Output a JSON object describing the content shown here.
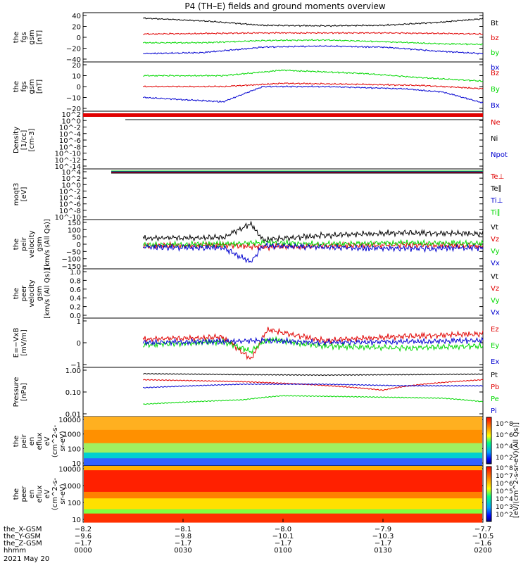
{
  "title": "P4 (TH–E) fields and ground moments overview",
  "colors": {
    "black": "#000000",
    "red": "#e00000",
    "green": "#00d800",
    "blue": "#0000d0"
  },
  "chart_data": [
    {
      "type": "line",
      "ylabel": [
        "the",
        "fgs",
        "gsm",
        "[nT]"
      ],
      "yticks": [
        "40",
        "20",
        "0",
        "−20",
        "−40"
      ],
      "ylim": [
        -40,
        40
      ],
      "series": [
        {
          "name": "Bt",
          "color": "black",
          "x": [
            0.15,
            0.3,
            0.45,
            0.6,
            0.75,
            0.9,
            1.0
          ],
          "values": [
            35,
            30,
            22,
            21,
            22,
            28,
            34
          ]
        },
        {
          "name": "bz",
          "color": "red",
          "x": [
            0.15,
            0.3,
            0.45,
            0.6,
            0.75,
            0.9,
            1.0
          ],
          "values": [
            6,
            7,
            8,
            8,
            8,
            7,
            6
          ]
        },
        {
          "name": "by",
          "color": "green",
          "x": [
            0.15,
            0.3,
            0.45,
            0.6,
            0.75,
            0.9,
            1.0
          ],
          "values": [
            -10,
            -10,
            -6,
            -5,
            -8,
            -12,
            -13
          ]
        },
        {
          "name": "bx",
          "color": "blue",
          "x": [
            0.15,
            0.3,
            0.45,
            0.6,
            0.75,
            0.9,
            1.0
          ],
          "values": [
            -30,
            -28,
            -18,
            -16,
            -18,
            -26,
            -30
          ]
        }
      ]
    },
    {
      "type": "line",
      "ylabel": [
        "the",
        "fgs",
        "gsm",
        "[nT]"
      ],
      "yticks": [
        "20",
        "10",
        "0",
        "−10",
        "−20"
      ],
      "ylim": [
        -20,
        20
      ],
      "series": [
        {
          "name": "Bz",
          "color": "red",
          "x": [
            0.15,
            0.35,
            0.5,
            0.7,
            0.85,
            1.0
          ],
          "values": [
            0,
            0,
            3,
            2,
            1,
            -2
          ]
        },
        {
          "name": "By",
          "color": "green",
          "x": [
            0.15,
            0.35,
            0.5,
            0.7,
            0.85,
            1.0
          ],
          "values": [
            10,
            10,
            15,
            12,
            8,
            5
          ]
        },
        {
          "name": "Bx",
          "color": "blue",
          "x": [
            0.15,
            0.35,
            0.45,
            0.6,
            0.8,
            0.9,
            1.0
          ],
          "values": [
            -10,
            -14,
            0,
            0,
            -2,
            -5,
            -15
          ]
        }
      ]
    },
    {
      "type": "line",
      "ylabel": [
        "Density",
        "[1/cc]",
        "[cm-3]"
      ],
      "yticks": [
        "10^2",
        "10^0",
        "10^-2",
        "10^-4",
        "10^-6",
        "10^-8",
        "10^-10",
        "10^-12",
        "10^-14"
      ],
      "series": [
        {
          "name": "Ne",
          "color": "red"
        },
        {
          "name": "Ni",
          "color": "black"
        },
        {
          "name": "Npot",
          "color": "blue"
        }
      ]
    },
    {
      "type": "line",
      "ylabel": [
        "moqt3",
        "[eV]"
      ],
      "yticks": [
        "10^4",
        "10^2",
        "10^0",
        "10^-2",
        "10^-4",
        "10^-6",
        "10^-8",
        "10^-10"
      ],
      "series": [
        {
          "name": "Te⊥",
          "color": "red"
        },
        {
          "name": "Te∥",
          "color": "black"
        },
        {
          "name": "Ti⊥",
          "color": "blue"
        },
        {
          "name": "Ti∥",
          "color": "green"
        }
      ]
    },
    {
      "type": "line",
      "ylabel": [
        "the",
        "peir",
        "velocity",
        "gsm",
        "[km/s (All Qs)]"
      ],
      "yticks": [
        "150",
        "100",
        "50",
        "0",
        "−50",
        "−100",
        "−150"
      ],
      "ylim": [
        -150,
        150
      ],
      "series": [
        {
          "name": "Vt",
          "color": "black",
          "x": [
            0.15,
            0.35,
            0.42,
            0.45,
            0.6,
            0.8,
            1.0
          ],
          "values": [
            40,
            45,
            140,
            30,
            60,
            80,
            70
          ]
        },
        {
          "name": "Vz",
          "color": "red",
          "x": [
            0.15,
            0.35,
            0.45,
            0.6,
            0.8,
            1.0
          ],
          "values": [
            -10,
            -5,
            -20,
            -10,
            -5,
            -10
          ]
        },
        {
          "name": "Vy",
          "color": "green",
          "x": [
            0.15,
            0.35,
            0.45,
            0.6,
            0.8,
            1.0
          ],
          "values": [
            -5,
            0,
            10,
            0,
            10,
            5
          ]
        },
        {
          "name": "Vx",
          "color": "blue",
          "x": [
            0.15,
            0.35,
            0.42,
            0.45,
            0.6,
            0.8,
            1.0
          ],
          "values": [
            -20,
            -25,
            -120,
            -10,
            -20,
            -30,
            -25
          ]
        }
      ]
    },
    {
      "type": "line",
      "ylabel": [
        "the",
        "peer",
        "velocity",
        "gsm",
        "[km/s (All Qs)]"
      ],
      "yticks": [
        "1.0",
        "0.8",
        "0.6",
        "0.4",
        "0.2",
        "0.0"
      ],
      "ylim": [
        0,
        1
      ],
      "series": [
        {
          "name": "Vt",
          "color": "black"
        },
        {
          "name": "Vz",
          "color": "red"
        },
        {
          "name": "Vy",
          "color": "green"
        },
        {
          "name": "Vx",
          "color": "blue"
        }
      ]
    },
    {
      "type": "line",
      "ylabel": [
        "E=−VxB",
        "[mV/m]"
      ],
      "yticks": [
        "1",
        "0",
        "−1"
      ],
      "ylim": [
        -2,
        2
      ],
      "series": [
        {
          "name": "Ez",
          "color": "red",
          "x": [
            0.15,
            0.35,
            0.42,
            0.46,
            0.6,
            0.8,
            1.0
          ],
          "values": [
            0.3,
            0.5,
            -1.5,
            1.2,
            0.2,
            0.6,
            0.8
          ]
        },
        {
          "name": "Ey",
          "color": "green",
          "x": [
            0.15,
            0.35,
            0.42,
            0.46,
            0.6,
            0.8,
            1.0
          ],
          "values": [
            -0.2,
            0.1,
            -0.8,
            0.3,
            -0.3,
            -0.5,
            -0.3
          ]
        },
        {
          "name": "Ex",
          "color": "blue",
          "x": [
            0.15,
            0.35,
            0.45,
            0.6,
            0.8,
            1.0
          ],
          "values": [
            0,
            0.1,
            0.2,
            0,
            0.1,
            0.2
          ]
        }
      ]
    },
    {
      "type": "line",
      "ylabel": [
        "Pressure",
        "[nPa]"
      ],
      "yticks": [
        "1.00",
        "0.10",
        "0.01"
      ],
      "ylim": [
        0.01,
        1.5
      ],
      "log": true,
      "series": [
        {
          "name": "Pt",
          "color": "black",
          "x": [
            0.15,
            0.4,
            0.6,
            0.8,
            1.0
          ],
          "values": [
            1.0,
            0.9,
            0.85,
            0.9,
            0.95
          ]
        },
        {
          "name": "Pb",
          "color": "red",
          "x": [
            0.15,
            0.4,
            0.55,
            0.75,
            0.85,
            1.0
          ],
          "values": [
            0.5,
            0.4,
            0.3,
            0.15,
            0.3,
            0.5
          ]
        },
        {
          "name": "Pe",
          "color": "green",
          "x": [
            0.15,
            0.4,
            0.5,
            0.7,
            0.9,
            1.0
          ],
          "values": [
            0.03,
            0.05,
            0.08,
            0.07,
            0.06,
            0.04
          ]
        },
        {
          "name": "Pi",
          "color": "blue",
          "x": [
            0.15,
            0.4,
            0.6,
            0.8,
            1.0
          ],
          "values": [
            0.2,
            0.3,
            0.3,
            0.25,
            0.25
          ]
        }
      ]
    },
    {
      "type": "heatmap",
      "ylabel": [
        "the",
        "peir",
        "en",
        "eflux",
        "eV",
        "(cm^2-s-",
        "sr-eV)"
      ],
      "yticks": [
        "10000",
        "1000",
        "100",
        "10"
      ]
    },
    {
      "type": "heatmap",
      "ylabel": [
        "the",
        "peer",
        "en",
        "eflux",
        "eV",
        "(cm^2-s-",
        "sr-eV)"
      ],
      "yticks": [
        "10000",
        "1000",
        "100",
        "10"
      ]
    }
  ],
  "colorbar": {
    "ticks": [
      "10^8",
      "10^6",
      "10^4",
      "10^2",
      "10^8",
      "10^7",
      "10^6",
      "10^5",
      "10^4",
      "10^3",
      "10^2"
    ],
    "label": "[eV/(cm^2-s-sr-eV)(All Qs)]"
  },
  "xaxis": {
    "row_labels": [
      "the_X-GSM",
      "the_Y-GSM",
      "the_Z-GSM",
      "hhmm",
      "2021 May 20"
    ],
    "columns": [
      {
        "x": [
          "−8.2",
          "−9.6",
          "−1.7",
          "0000"
        ]
      },
      {
        "x": [
          "−8.1",
          "−9.8",
          "−1.7",
          "0030"
        ]
      },
      {
        "x": [
          "−8.0",
          "−10.1",
          "−1.7",
          "0100"
        ]
      },
      {
        "x": [
          "−7.9",
          "−10.3",
          "−1.7",
          "0130"
        ]
      },
      {
        "x": [
          "−7.7",
          "−10.5",
          "−1.6",
          "0200"
        ]
      }
    ]
  }
}
